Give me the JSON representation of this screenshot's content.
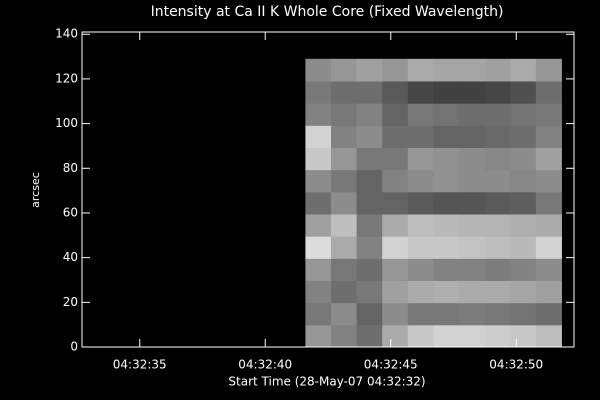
{
  "chart_data": {
    "type": "heatmap",
    "title": "Intensity at Ca II K Whole Core (Fixed Wavelength)",
    "x_label": "Start Time (28-May-07 04:32:32)",
    "y_label": "arcsec",
    "xlim": [
      0.7,
      20.3
    ],
    "ylim": [
      0,
      141
    ],
    "xticks": [
      {
        "value": 3,
        "label": "04:32:35"
      },
      {
        "value": 8,
        "label": "04:32:40"
      },
      {
        "value": 13,
        "label": "04:32:45"
      },
      {
        "value": 18,
        "label": "04:32:50"
      }
    ],
    "yticks": [
      0,
      20,
      40,
      60,
      80,
      100,
      120,
      140
    ],
    "extent": [
      9.6,
      19.8,
      0,
      129
    ],
    "z": [
      [
        150,
        130,
        110,
        170,
        200,
        210,
        210,
        205,
        200,
        190
      ],
      [
        120,
        140,
        100,
        140,
        120,
        120,
        125,
        120,
        115,
        110
      ],
      [
        130,
        110,
        120,
        160,
        170,
        175,
        170,
        170,
        165,
        160
      ],
      [
        150,
        120,
        110,
        150,
        140,
        130,
        130,
        125,
        130,
        140
      ],
      [
        220,
        170,
        130,
        210,
        200,
        200,
        195,
        190,
        185,
        210
      ],
      [
        160,
        190,
        120,
        170,
        190,
        185,
        180,
        180,
        175,
        170
      ],
      [
        110,
        140,
        100,
        100,
        90,
        85,
        85,
        90,
        95,
        120
      ],
      [
        140,
        120,
        100,
        130,
        140,
        145,
        140,
        140,
        135,
        140
      ],
      [
        200,
        150,
        120,
        120,
        150,
        145,
        140,
        135,
        140,
        160
      ],
      [
        210,
        130,
        140,
        110,
        110,
        100,
        100,
        105,
        110,
        130
      ],
      [
        130,
        120,
        130,
        100,
        120,
        115,
        110,
        110,
        115,
        120
      ],
      [
        120,
        110,
        110,
        90,
        70,
        65,
        65,
        70,
        80,
        110
      ],
      [
        140,
        150,
        160,
        150,
        170,
        165,
        165,
        160,
        170,
        150
      ]
    ]
  }
}
